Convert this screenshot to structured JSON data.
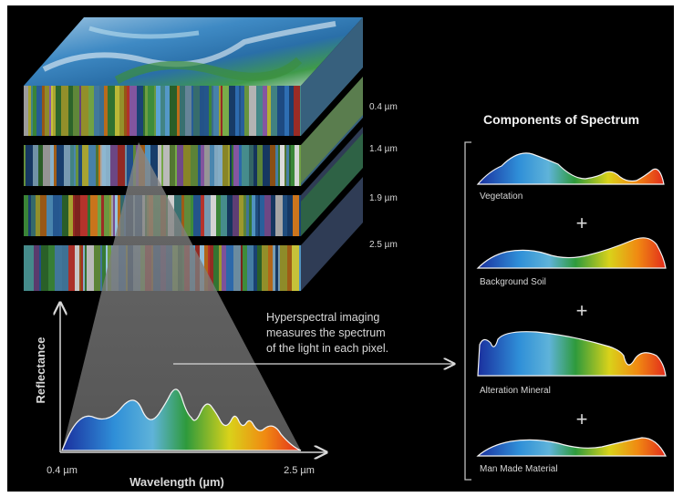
{
  "cube": {
    "band_labels": [
      "0.4 µm",
      "1.4 µm",
      "1.9 µm",
      "2.5 µm"
    ]
  },
  "graph": {
    "ylabel": "Reflectance",
    "xlabel": "Wavelength (µm)",
    "x_min_label": "0.4 µm",
    "x_max_label": "2.5 µm"
  },
  "callout": {
    "lines": [
      "Hyperspectral imaging",
      "measures the spectrum",
      "of the light in each pixel."
    ]
  },
  "components": {
    "title": "Components of Spectrum",
    "items": [
      {
        "label": "Vegetation"
      },
      {
        "label": "Background Soil"
      },
      {
        "label": "Alteration Mineral"
      },
      {
        "label": "Man Made Material"
      }
    ],
    "plus_symbol": "+"
  },
  "colors": {
    "background": "#000000",
    "spectrum": [
      "#1a2f9e",
      "#2f8fd8",
      "#5fb3d9",
      "#2e9a3c",
      "#d9d21a",
      "#f08a12",
      "#e22b1c"
    ]
  }
}
